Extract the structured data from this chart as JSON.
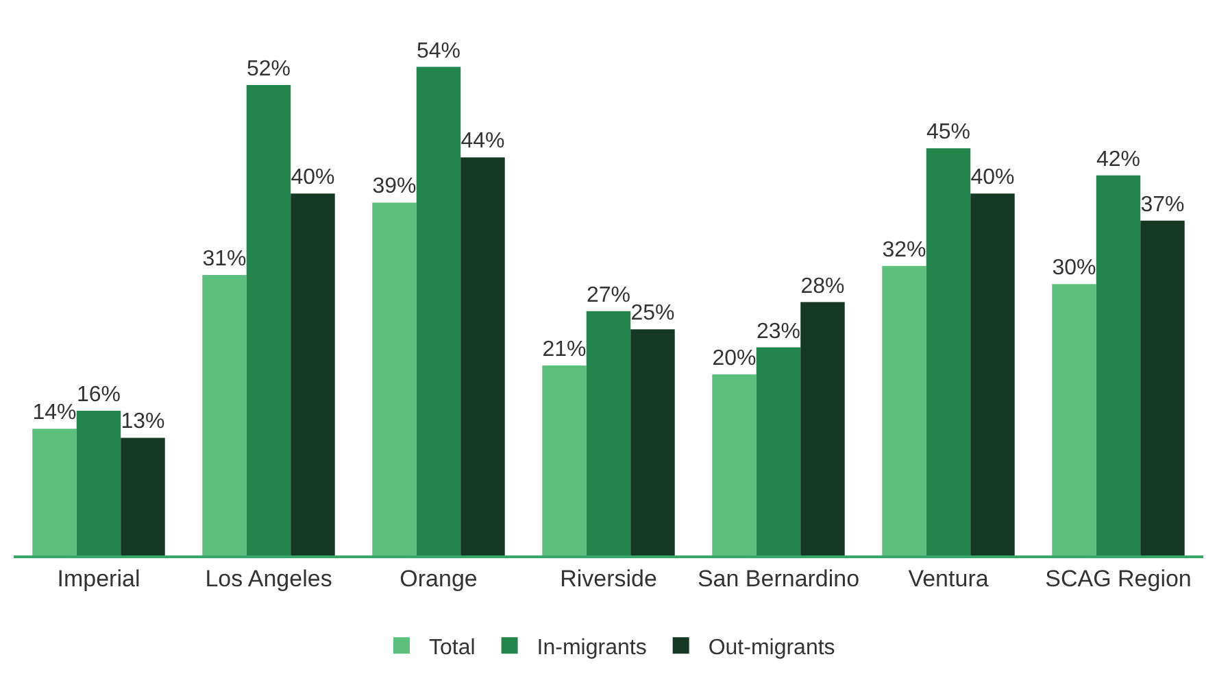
{
  "chart_data": {
    "type": "bar",
    "categories": [
      "Imperial",
      "Los Angeles",
      "Orange",
      "Riverside",
      "San Bernardino",
      "Ventura",
      "SCAG Region"
    ],
    "series": [
      {
        "name": "Total",
        "color": "#5dbf7d",
        "values": [
          14,
          31,
          39,
          21,
          20,
          32,
          30
        ],
        "value_labels": [
          "14%",
          "31%",
          "39%",
          "21%",
          "20%",
          "32%",
          "30%"
        ]
      },
      {
        "name": "In-migrants",
        "color": "#23844c",
        "values": [
          16,
          52,
          54,
          27,
          23,
          45,
          42
        ],
        "value_labels": [
          "16%",
          "52%",
          "54%",
          "27%",
          "23%",
          "45%",
          "42%"
        ]
      },
      {
        "name": "Out-migrants",
        "color": "#143823",
        "values": [
          13,
          40,
          44,
          25,
          28,
          40,
          37
        ],
        "value_labels": [
          "13%",
          "40%",
          "44%",
          "25%",
          "28%",
          "40%",
          "37%"
        ]
      }
    ],
    "legend": "bottom"
  }
}
